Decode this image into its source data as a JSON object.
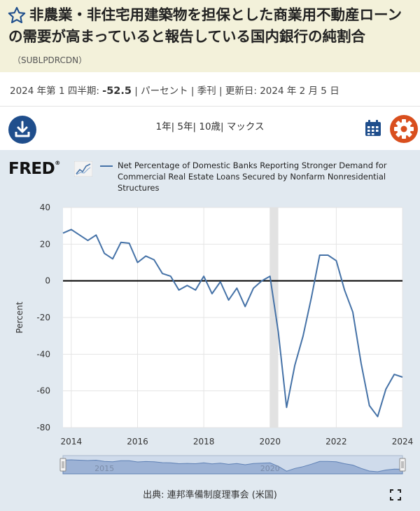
{
  "header": {
    "title": "非農業・非住宅用建築物を担保とした商業用不動産ローンの需要が高まっていると報告している国内銀行の純割合",
    "series_id": "（SUBLPDRCDN）"
  },
  "meta": {
    "period": "2024 年第 1 四半期: ",
    "value": "-52.5",
    "rest": " | パーセント | 季刊 | 更新日: 2024 年 2 月 5 日"
  },
  "ranges": [
    "1年",
    "5年",
    "10歳",
    "マックス"
  ],
  "chart": {
    "logo": "FRED",
    "logo_mark": "®",
    "legend": "Net Percentage of Domestic Banks Reporting Stronger Demand for Commercial Real Estate Loans Secured by Nonfarm Nonresidential Structures",
    "source": "出典: 連邦準備制度理事会 (米国)"
  },
  "chart_data": {
    "type": "line",
    "ylabel": "Percent",
    "ylim": [
      -80,
      40
    ],
    "xlim": [
      2013.75,
      2024.0
    ],
    "yticks": [
      40,
      20,
      0,
      -20,
      -40,
      -60,
      -80
    ],
    "xticks": [
      2014,
      2016,
      2018,
      2020,
      2022,
      2024
    ],
    "recession": [
      2020.0,
      2020.25
    ],
    "navigator_labels": [
      {
        "year": 2015,
        "label": "2015"
      },
      {
        "year": 2020,
        "label": "2020"
      }
    ],
    "series": [
      {
        "name": "SUBLPDRCDN",
        "color": "#4572a7",
        "x": [
          2013.75,
          2014.0,
          2014.25,
          2014.5,
          2014.75,
          2015.0,
          2015.25,
          2015.5,
          2015.75,
          2016.0,
          2016.25,
          2016.5,
          2016.75,
          2017.0,
          2017.25,
          2017.5,
          2017.75,
          2018.0,
          2018.25,
          2018.5,
          2018.75,
          2019.0,
          2019.25,
          2019.5,
          2019.75,
          2020.0,
          2020.25,
          2020.5,
          2020.75,
          2021.0,
          2021.25,
          2021.5,
          2021.75,
          2022.0,
          2022.25,
          2022.5,
          2022.75,
          2023.0,
          2023.25,
          2023.5,
          2023.75,
          2024.0
        ],
        "y": [
          26,
          28,
          25,
          22,
          25,
          15,
          12,
          21,
          20.5,
          10,
          13.5,
          11.5,
          4,
          2.5,
          -5,
          -2.5,
          -5,
          2.5,
          -7,
          -0.5,
          -10.5,
          -4,
          -14,
          -4,
          0,
          2.5,
          -28,
          -69,
          -46,
          -30,
          -9,
          14,
          14,
          11,
          -5,
          -17,
          -45,
          -68,
          -74,
          -59,
          -51,
          -52.5
        ]
      }
    ]
  }
}
